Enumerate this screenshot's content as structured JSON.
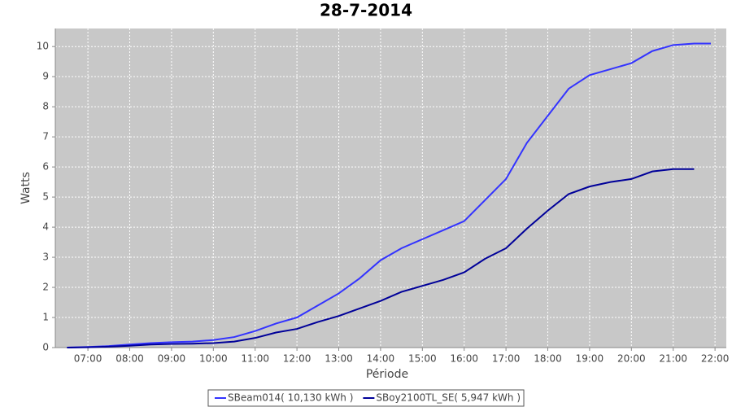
{
  "chart_data": {
    "type": "line",
    "title": "28-7-2014",
    "x_label": "Période",
    "y_label": "Watts",
    "x": [
      6.5,
      7.0,
      7.5,
      8.0,
      8.5,
      9.0,
      9.5,
      10.0,
      10.5,
      11.0,
      11.5,
      12.0,
      12.5,
      13.0,
      13.5,
      14.0,
      14.5,
      15.0,
      15.5,
      16.0,
      16.5,
      17.0,
      17.5,
      18.0,
      18.5,
      19.0,
      19.5,
      20.0,
      20.5,
      21.0,
      21.5,
      21.9
    ],
    "series": [
      {
        "name": "SBeam014( 10,130 kWh )",
        "color": "#3333ff",
        "values": [
          0,
          0.02,
          0.05,
          0.1,
          0.15,
          0.18,
          0.2,
          0.25,
          0.35,
          0.55,
          0.8,
          1.0,
          1.4,
          1.8,
          2.3,
          2.9,
          3.3,
          3.6,
          3.9,
          4.2,
          4.9,
          5.6,
          6.8,
          7.7,
          8.6,
          9.05,
          9.25,
          9.45,
          9.85,
          10.05,
          10.1,
          10.1
        ]
      },
      {
        "name": "SBoy2100TL_SE( 5,947 kWh )",
        "color": "#000099",
        "values": [
          0,
          0.01,
          0.03,
          0.06,
          0.1,
          0.12,
          0.13,
          0.15,
          0.2,
          0.32,
          0.5,
          0.62,
          0.85,
          1.05,
          1.3,
          1.55,
          1.85,
          2.05,
          2.25,
          2.5,
          2.95,
          3.3,
          3.95,
          4.55,
          5.1,
          5.35,
          5.5,
          5.6,
          5.85,
          5.93,
          5.93,
          null
        ]
      }
    ],
    "xlim": [
      6.22,
      22.27
    ],
    "xticks": [
      {
        "value": 7,
        "label": "07:00"
      },
      {
        "value": 8,
        "label": "08:00"
      },
      {
        "value": 9,
        "label": "09:00"
      },
      {
        "value": 10,
        "label": "10:00"
      },
      {
        "value": 11,
        "label": "11:00"
      },
      {
        "value": 12,
        "label": "12:00"
      },
      {
        "value": 13,
        "label": "13:00"
      },
      {
        "value": 14,
        "label": "14:00"
      },
      {
        "value": 15,
        "label": "15:00"
      },
      {
        "value": 16,
        "label": "16:00"
      },
      {
        "value": 17,
        "label": "17:00"
      },
      {
        "value": 18,
        "label": "18:00"
      },
      {
        "value": 19,
        "label": "19:00"
      },
      {
        "value": 20,
        "label": "20:00"
      },
      {
        "value": 21,
        "label": "21:00"
      },
      {
        "value": 22,
        "label": "22:00"
      }
    ],
    "ylim": [
      0,
      10.6
    ],
    "yticks": [
      0,
      1,
      2,
      3,
      4,
      5,
      6,
      7,
      8,
      9,
      10
    ],
    "grid": true,
    "plot_background": "#c8c8c8",
    "legend_position": "bottom"
  }
}
